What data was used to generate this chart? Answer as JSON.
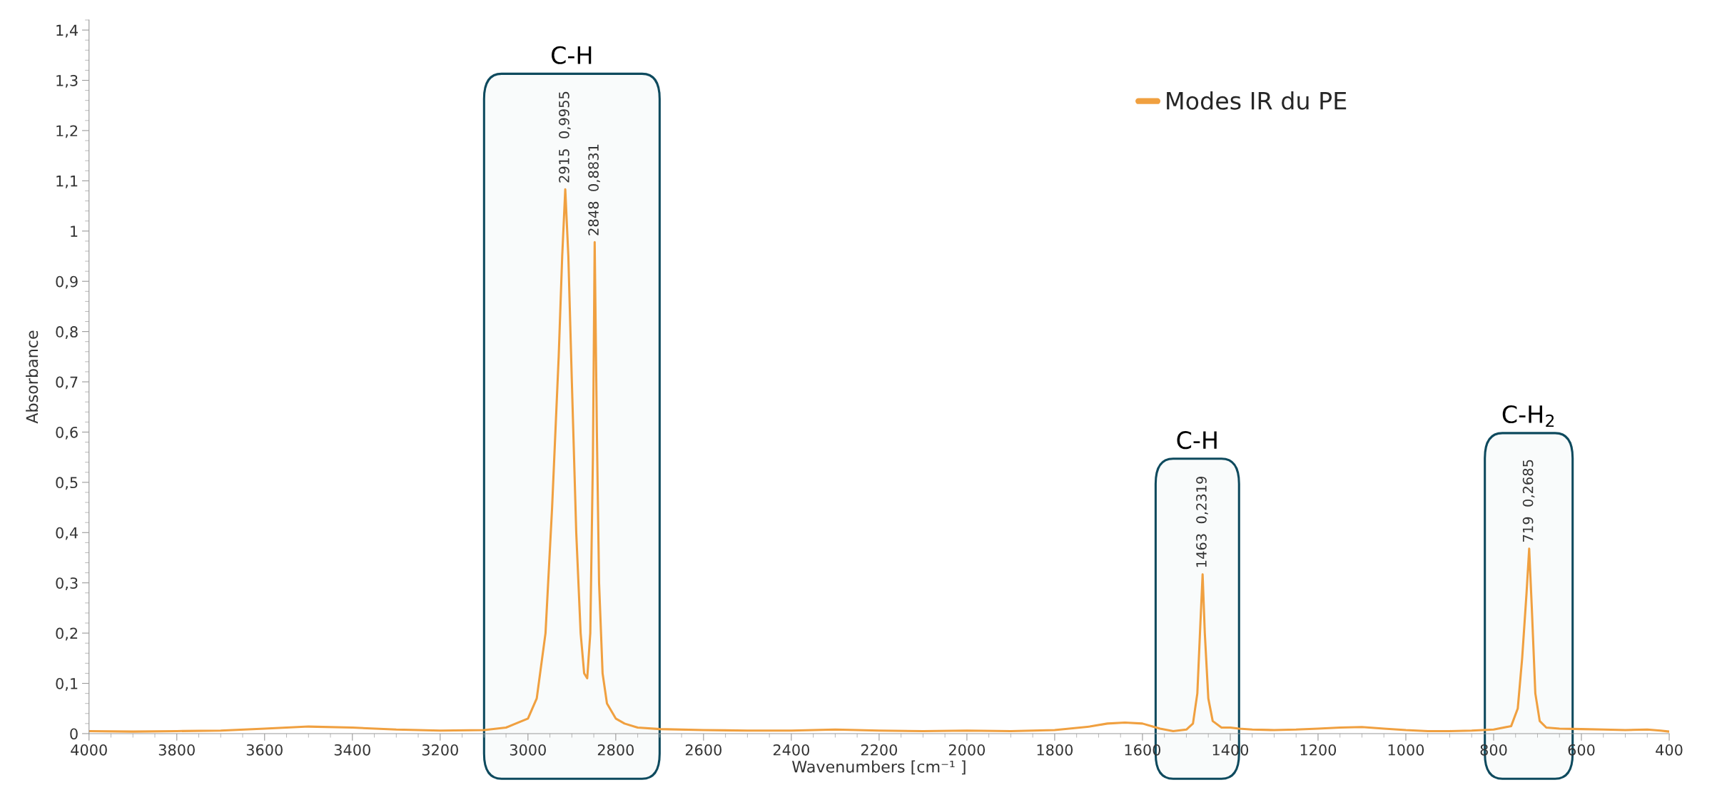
{
  "chart_data": {
    "type": "line",
    "xlabel": "Wavenumbers [cm⁻¹ ]",
    "ylabel": "Absorbance",
    "xlim": [
      4000,
      400
    ],
    "ylim": [
      0,
      1.42
    ],
    "xticks": [
      4000,
      3800,
      3600,
      3400,
      3200,
      3000,
      2800,
      2600,
      2400,
      2200,
      2000,
      1800,
      1600,
      1400,
      1200,
      1000,
      800,
      600,
      400
    ],
    "yticks": [
      0,
      {
        "value": 0.1,
        "label": "0,1"
      },
      {
        "value": 0.2,
        "label": "0,2"
      },
      {
        "value": 0.3,
        "label": "0,3"
      },
      {
        "value": 0.4,
        "label": "0,4"
      },
      {
        "value": 0.5,
        "label": "0,5"
      },
      {
        "value": 0.6,
        "label": "0,6"
      },
      {
        "value": 0.7,
        "label": "0,7"
      },
      {
        "value": 0.8,
        "label": "0,8"
      },
      {
        "value": 0.9,
        "label": "0,9"
      },
      1,
      {
        "value": 1.1,
        "label": "1,1"
      },
      {
        "value": 1.2,
        "label": "1,2"
      },
      {
        "value": 1.3,
        "label": "1,3"
      },
      {
        "value": 1.4,
        "label": "1,4"
      }
    ],
    "legend": "top right",
    "grid": false,
    "marker": "none",
    "line_style": "solid",
    "series": [
      {
        "name": "Modes IR du PE",
        "color": "#f0a040",
        "x": [
          4000,
          3900,
          3800,
          3700,
          3600,
          3500,
          3400,
          3300,
          3200,
          3100,
          3050,
          3000,
          2980,
          2960,
          2945,
          2930,
          2922,
          2915,
          2908,
          2900,
          2890,
          2880,
          2872,
          2865,
          2858,
          2852,
          2848,
          2843,
          2838,
          2830,
          2820,
          2800,
          2780,
          2750,
          2700,
          2600,
          2500,
          2400,
          2300,
          2200,
          2100,
          2000,
          1900,
          1800,
          1720,
          1680,
          1640,
          1600,
          1560,
          1530,
          1500,
          1485,
          1475,
          1468,
          1463,
          1458,
          1450,
          1440,
          1420,
          1400,
          1380,
          1350,
          1300,
          1250,
          1200,
          1150,
          1100,
          1050,
          1000,
          950,
          900,
          850,
          800,
          760,
          745,
          735,
          725,
          719,
          713,
          705,
          695,
          680,
          650,
          600,
          550,
          500,
          450,
          420,
          400
        ],
        "values": [
          0.005,
          0.004,
          0.005,
          0.006,
          0.01,
          0.014,
          0.012,
          0.008,
          0.006,
          0.007,
          0.012,
          0.03,
          0.07,
          0.2,
          0.45,
          0.75,
          0.95,
          1.083,
          0.95,
          0.7,
          0.4,
          0.2,
          0.12,
          0.11,
          0.2,
          0.55,
          0.978,
          0.6,
          0.3,
          0.12,
          0.06,
          0.03,
          0.02,
          0.012,
          0.009,
          0.007,
          0.006,
          0.006,
          0.008,
          0.006,
          0.005,
          0.006,
          0.005,
          0.007,
          0.014,
          0.02,
          0.022,
          0.02,
          0.01,
          0.005,
          0.008,
          0.02,
          0.08,
          0.22,
          0.317,
          0.2,
          0.07,
          0.025,
          0.012,
          0.012,
          0.01,
          0.008,
          0.007,
          0.008,
          0.01,
          0.012,
          0.013,
          0.01,
          0.007,
          0.005,
          0.005,
          0.006,
          0.008,
          0.015,
          0.05,
          0.15,
          0.28,
          0.368,
          0.25,
          0.08,
          0.025,
          0.012,
          0.01,
          0.009,
          0.008,
          0.007,
          0.008,
          0.006,
          0.004
        ]
      }
    ],
    "annotations": [
      {
        "text": "2915  0,9955",
        "x": 2915,
        "y": 1.083
      },
      {
        "text": "2848  0,8831",
        "x": 2848,
        "y": 0.978
      },
      {
        "text": "1463  0,2319",
        "x": 1463,
        "y": 0.317
      },
      {
        "text": "719  0,2685",
        "x": 719,
        "y": 0.368
      }
    ],
    "bands": [
      {
        "axis": "x",
        "from": 3100,
        "to": 2700,
        "label": "C-H",
        "color": "#0e4a5e"
      },
      {
        "axis": "x",
        "from": 1570,
        "to": 1380,
        "label": "C-H",
        "color": "#0e4a5e"
      },
      {
        "axis": "x",
        "from": 820,
        "to": 620,
        "label": "C-H$_{2}$",
        "color": "#0e4a5e"
      }
    ]
  }
}
